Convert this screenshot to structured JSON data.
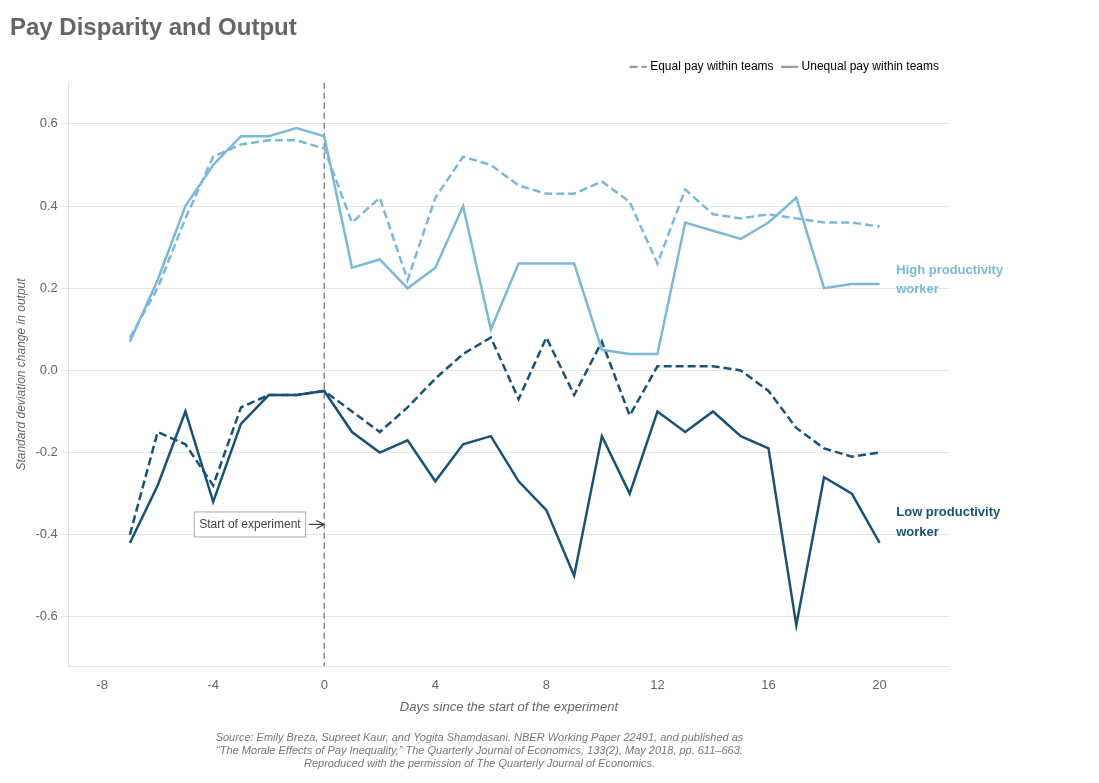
{
  "chart_data": {
    "type": "line",
    "title": "Pay Disparity and Output",
    "x_label": "Days since the start of the experiment",
    "y_label": "Standard deviation change in output",
    "xlim": [
      -9.2,
      22.5
    ],
    "xticks": [
      -8,
      -4,
      0,
      4,
      8,
      12,
      16,
      20
    ],
    "ylim": [
      -0.72,
      0.7
    ],
    "yticks": [
      -0.6,
      -0.4,
      -0.2,
      {
        "value": 0.0,
        "label": "0.0"
      },
      0.2,
      0.4,
      0.6
    ],
    "grid": "y",
    "legend": "upper right",
    "vline": 0,
    "series": [
      {
        "name": "Equal pay within teams",
        "color": "#7cb9d8",
        "line_style": "dashed",
        "x": [
          -7,
          -6,
          -5,
          -4,
          -3,
          -2,
          -1,
          0,
          1,
          2,
          3,
          4,
          5,
          6,
          7,
          8,
          9,
          10,
          11,
          12,
          13,
          14,
          15,
          16,
          17,
          18,
          19,
          20
        ],
        "values": [
          0.08,
          0.2,
          0.37,
          0.52,
          0.55,
          0.56,
          0.56,
          0.54,
          0.36,
          0.42,
          0.22,
          0.42,
          0.52,
          0.5,
          0.45,
          0.43,
          0.43,
          0.46,
          0.41,
          0.26,
          0.44,
          0.38,
          0.37,
          0.38,
          0.37,
          0.36,
          0.36,
          0.35
        ]
      },
      {
        "name": "Unequal pay within teams",
        "color": "#7cb9d8",
        "line_style": "solid",
        "x": [
          -7,
          -6,
          -5,
          -4,
          -3,
          -2,
          -1,
          0,
          1,
          2,
          3,
          4,
          5,
          6,
          7,
          8,
          9,
          10,
          11,
          12,
          13,
          14,
          15,
          16,
          17,
          18,
          19,
          20
        ],
        "values": [
          0.07,
          0.22,
          0.4,
          0.5,
          0.57,
          0.57,
          0.59,
          0.57,
          0.25,
          0.27,
          0.2,
          0.25,
          0.4,
          0.1,
          0.26,
          0.26,
          0.26,
          0.05,
          0.04,
          0.04,
          0.36,
          0.34,
          0.32,
          0.36,
          0.42,
          0.2,
          0.21,
          0.21
        ]
      },
      {
        "name": "Equal pay within teams",
        "color": "#1a5276",
        "line_style": "dashed",
        "x": [
          -7,
          -6,
          -5,
          -4,
          -3,
          -2,
          -1,
          0,
          1,
          2,
          3,
          4,
          5,
          6,
          7,
          8,
          9,
          10,
          11,
          12,
          13,
          14,
          15,
          16,
          17,
          18,
          19,
          20
        ],
        "values": [
          -0.4,
          -0.15,
          -0.18,
          -0.28,
          -0.09,
          -0.06,
          -0.06,
          -0.05,
          -0.1,
          -0.15,
          -0.09,
          -0.02,
          0.04,
          0.08,
          -0.07,
          0.08,
          -0.06,
          0.07,
          -0.11,
          0.01,
          0.01,
          0.01,
          0.0,
          -0.05,
          -0.14,
          -0.19,
          -0.21,
          -0.2
        ]
      },
      {
        "name": "Unequal pay within teams",
        "color": "#1a5276",
        "line_style": "solid",
        "x": [
          -7,
          -6,
          -5,
          -4,
          -3,
          -2,
          -1,
          0,
          1,
          2,
          3,
          4,
          5,
          6,
          7,
          8,
          9,
          10,
          11,
          12,
          13,
          14,
          15,
          16,
          17,
          18,
          19,
          20
        ],
        "values": [
          -0.42,
          -0.28,
          -0.1,
          -0.32,
          -0.13,
          -0.06,
          -0.06,
          -0.05,
          -0.15,
          -0.2,
          -0.17,
          -0.27,
          -0.18,
          -0.16,
          -0.27,
          -0.34,
          -0.5,
          -0.16,
          -0.3,
          -0.1,
          -0.15,
          -0.1,
          -0.16,
          -0.19,
          -0.62,
          -0.26,
          -0.3,
          -0.42
        ]
      }
    ],
    "annotations": [
      {
        "text": "Start of experiment",
        "x": -0.85,
        "y": -0.375,
        "arrow_to": [
          0.0,
          -0.375
        ]
      },
      {
        "text": "High productivity\nworker",
        "x": 20.6,
        "y": 0.22,
        "color": "#7cb9d8"
      },
      {
        "text": "Low productivity\nworker",
        "x": 20.6,
        "y": -0.37,
        "color": "#1a5276"
      }
    ],
    "source": "Source: Emily Breza, Supreet Kaur, and Yogita Shamdasani. NBER Working Paper 22491, and published as\n“The Morale Effects of Pay Inequality,” The Quarterly Journal of Economics, 133(2), May 2018, pp. 611–663.\nReproduced with the permission of The Quarterly Journal of Economics."
  }
}
